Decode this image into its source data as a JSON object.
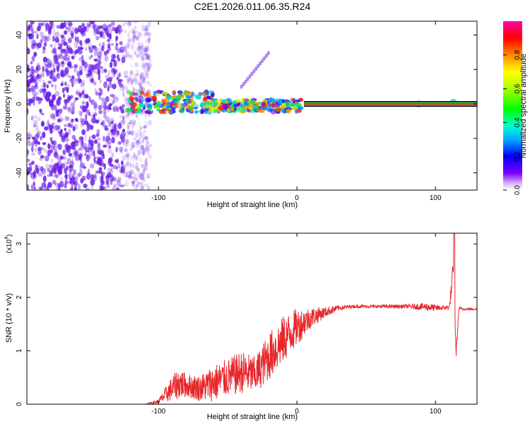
{
  "title": "C2E1.2026.011.06.35.R24",
  "colors": {
    "trace": "#e8262b",
    "speckle": "#6a1ee6",
    "line_core": "#ff2020",
    "line_halo": "#33dd44"
  },
  "chart_data": [
    {
      "type": "heatmap",
      "name": "spectrogram",
      "xlabel": "Height of straight line (km)",
      "ylabel": "Frequency (Hz)",
      "xlim": [
        -195,
        130
      ],
      "ylim": [
        -50,
        48
      ],
      "xticks": [
        -100,
        0,
        100
      ],
      "xtick_labels": [
        "-100",
        "0",
        "100"
      ],
      "yticks": [
        -40,
        -20,
        0,
        20,
        40
      ],
      "ytick_labels": [
        "-40",
        "-20",
        "0",
        "20",
        "40"
      ],
      "noise_region_x": [
        -195,
        -110
      ],
      "signal_band": {
        "x": [
          5,
          130
        ],
        "frequency": 0
      },
      "features": [
        {
          "x": -87,
          "frequency": 2
        },
        {
          "x": -60,
          "frequency": 0
        },
        {
          "x": -30,
          "frequency": -2
        },
        {
          "x": -5,
          "frequency": 0
        },
        {
          "x": 88,
          "frequency": 0
        },
        {
          "x": 113,
          "frequency": 1
        }
      ],
      "colorbar": {
        "label": "Normalized spectral amplitude",
        "range": [
          0,
          1
        ],
        "ticks": [
          0.0,
          0.2,
          0.4,
          0.6,
          0.8
        ],
        "tick_labels": [
          "0.0",
          "0.2",
          "0.4",
          "0.6",
          "0.8"
        ]
      }
    },
    {
      "type": "line",
      "name": "snr",
      "xlabel": "Height of straight line (km)",
      "ylabel": "SNR (10 * v/v)",
      "y_multiplier": "(x10",
      "y_multiplier_exp": "4",
      "y_multiplier_close": ")",
      "xlim": [
        -195,
        130
      ],
      "ylim": [
        0,
        3.2
      ],
      "xticks": [
        -100,
        0,
        100
      ],
      "xtick_labels": [
        "-100",
        "0",
        "100"
      ],
      "yticks": [
        0,
        1,
        2,
        3
      ],
      "ytick_labels": [
        "0",
        "1",
        "2",
        "3"
      ],
      "series": [
        {
          "name": "SNR",
          "x": [
            -195,
            -110,
            -100,
            -92,
            -85,
            -80,
            -70,
            -60,
            -50,
            -40,
            -30,
            -20,
            -10,
            0,
            10,
            20,
            30,
            40,
            60,
            80,
            95,
            100,
            110,
            113,
            115,
            117,
            120,
            130
          ],
          "values": [
            0.0,
            0.0,
            0.05,
            0.25,
            0.4,
            0.35,
            0.3,
            0.4,
            0.5,
            0.6,
            0.55,
            0.9,
            1.2,
            1.45,
            1.62,
            1.72,
            1.8,
            1.83,
            1.83,
            1.83,
            1.82,
            1.8,
            1.81,
            2.5,
            0.95,
            1.8,
            1.78,
            1.78
          ],
          "noise_amplitude": [
            0,
            0,
            0.04,
            0.2,
            0.3,
            0.22,
            0.25,
            0.35,
            0.35,
            0.4,
            0.35,
            0.45,
            0.45,
            0.35,
            0.2,
            0.1,
            0.05,
            0.03,
            0.03,
            0.04,
            0.08,
            0.06,
            0.04,
            0.3,
            0.1,
            0.03,
            0.02,
            0.02
          ]
        }
      ]
    }
  ]
}
